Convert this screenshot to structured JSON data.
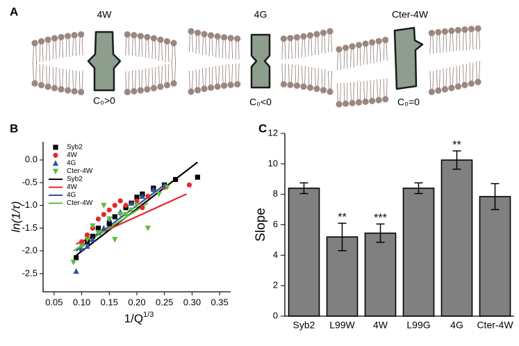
{
  "panel_labels": [
    "A",
    "B",
    "C"
  ],
  "diagram": {
    "proteins": [
      {
        "label": "4W",
        "curvature": "C₀>0"
      },
      {
        "label": "4G",
        "curvature": "C₀<0"
      },
      {
        "label": "Cter-4W",
        "curvature": "C₀=0"
      }
    ]
  },
  "chart_data": [
    {
      "type": "scatter",
      "xlabel": "1/Q",
      "xlabel_superscript": "1/3",
      "ylabel": "ln(1/τ)",
      "xlim": [
        0.03,
        0.37
      ],
      "xticks": [
        0.05,
        {
          "value": 0.1,
          "label": "0.10"
        },
        0.15,
        {
          "value": 0.2,
          "label": "0.20"
        },
        0.25,
        {
          "value": 0.3,
          "label": "0.30"
        },
        0.35
      ],
      "ylim": [
        -2.9,
        0.4
      ],
      "yticks": [
        -2.5,
        {
          "value": -2,
          "label": "-2.0"
        },
        -1.5,
        {
          "value": -1,
          "label": "-1.0"
        },
        -0.5,
        {
          "value": 0,
          "label": "0.0"
        }
      ],
      "legend": "upper left",
      "series": [
        {
          "name": "Syb2",
          "style": "marker",
          "marker": "square",
          "color": "#000000",
          "x": [
            0.09,
            0.11,
            0.12,
            0.13,
            0.15,
            0.16,
            0.18,
            0.19,
            0.2,
            0.21,
            0.23,
            0.25,
            0.27,
            0.31
          ],
          "values": [
            -2.15,
            -1.8,
            -1.68,
            -1.5,
            -1.4,
            -1.25,
            -1.05,
            -0.95,
            -0.82,
            -0.75,
            -0.62,
            -0.55,
            -0.43,
            -0.38
          ]
        },
        {
          "name": "4W",
          "style": "marker",
          "marker": "circle",
          "color": "#e8262a",
          "x": [
            0.1,
            0.11,
            0.12,
            0.13,
            0.14,
            0.15,
            0.16,
            0.17,
            0.18,
            0.2,
            0.21,
            0.22,
            0.25,
            0.295
          ],
          "values": [
            -1.8,
            -1.65,
            -1.5,
            -1.3,
            -1.2,
            -1.1,
            -1.0,
            -0.9,
            -1.0,
            -0.9,
            -1.05,
            -0.8,
            -0.6,
            -0.55
          ]
        },
        {
          "name": "4G",
          "style": "marker",
          "marker": "triangle-up",
          "color": "#2f50a0",
          "x": [
            0.09,
            0.1,
            0.11,
            0.12,
            0.13,
            0.14,
            0.15,
            0.17,
            0.19,
            0.21,
            0.23,
            0.25
          ],
          "values": [
            -2.45,
            -1.95,
            -1.9,
            -1.75,
            -1.6,
            -1.5,
            -1.3,
            -1.15,
            -0.95,
            -0.8,
            -0.65,
            -0.55
          ]
        },
        {
          "name": "Cter-4W",
          "style": "marker",
          "marker": "triangle-down",
          "color": "#5bbd3c",
          "x": [
            0.085,
            0.1,
            0.11,
            0.12,
            0.13,
            0.14,
            0.15,
            0.16,
            0.17,
            0.18,
            0.19,
            0.2,
            0.22,
            0.24,
            0.255
          ],
          "values": [
            -2.25,
            -1.9,
            -1.75,
            -1.45,
            -1.6,
            -1.0,
            -1.3,
            -1.75,
            -1.2,
            -1.2,
            -1.1,
            -1.0,
            -1.5,
            -0.75,
            -0.6
          ]
        },
        {
          "name": "Syb2",
          "style": "line",
          "color": "#000000",
          "x": [
            0.09,
            0.31
          ],
          "values": [
            -2.1,
            -0.05
          ]
        },
        {
          "name": "4W",
          "style": "line",
          "color": "#e8262a",
          "x": [
            0.09,
            0.29
          ],
          "values": [
            -1.85,
            -0.75
          ]
        },
        {
          "name": "4G",
          "style": "line",
          "color": "#2f50a0",
          "x": [
            0.09,
            0.25
          ],
          "values": [
            -2.0,
            -0.55
          ]
        },
        {
          "name": "Cter-4W",
          "style": "line",
          "color": "#5bbd3c",
          "x": [
            0.085,
            0.22
          ],
          "values": [
            -2.0,
            -0.95
          ]
        }
      ]
    },
    {
      "type": "bar",
      "ylabel": "Slope",
      "color": "#808080",
      "categories": [
        "Syb2",
        "L99W",
        "4W",
        "L99G",
        "4G",
        "Cter-4W"
      ],
      "values": [
        8.4,
        5.2,
        5.45,
        8.4,
        10.25,
        7.85
      ],
      "errors": [
        0.35,
        0.9,
        0.6,
        0.35,
        0.6,
        0.85
      ],
      "significance": [
        null,
        "**",
        "***",
        null,
        "**",
        null
      ],
      "ylim": [
        0,
        12
      ],
      "yticks": [
        0,
        2,
        4,
        6,
        8,
        10,
        12
      ]
    }
  ]
}
